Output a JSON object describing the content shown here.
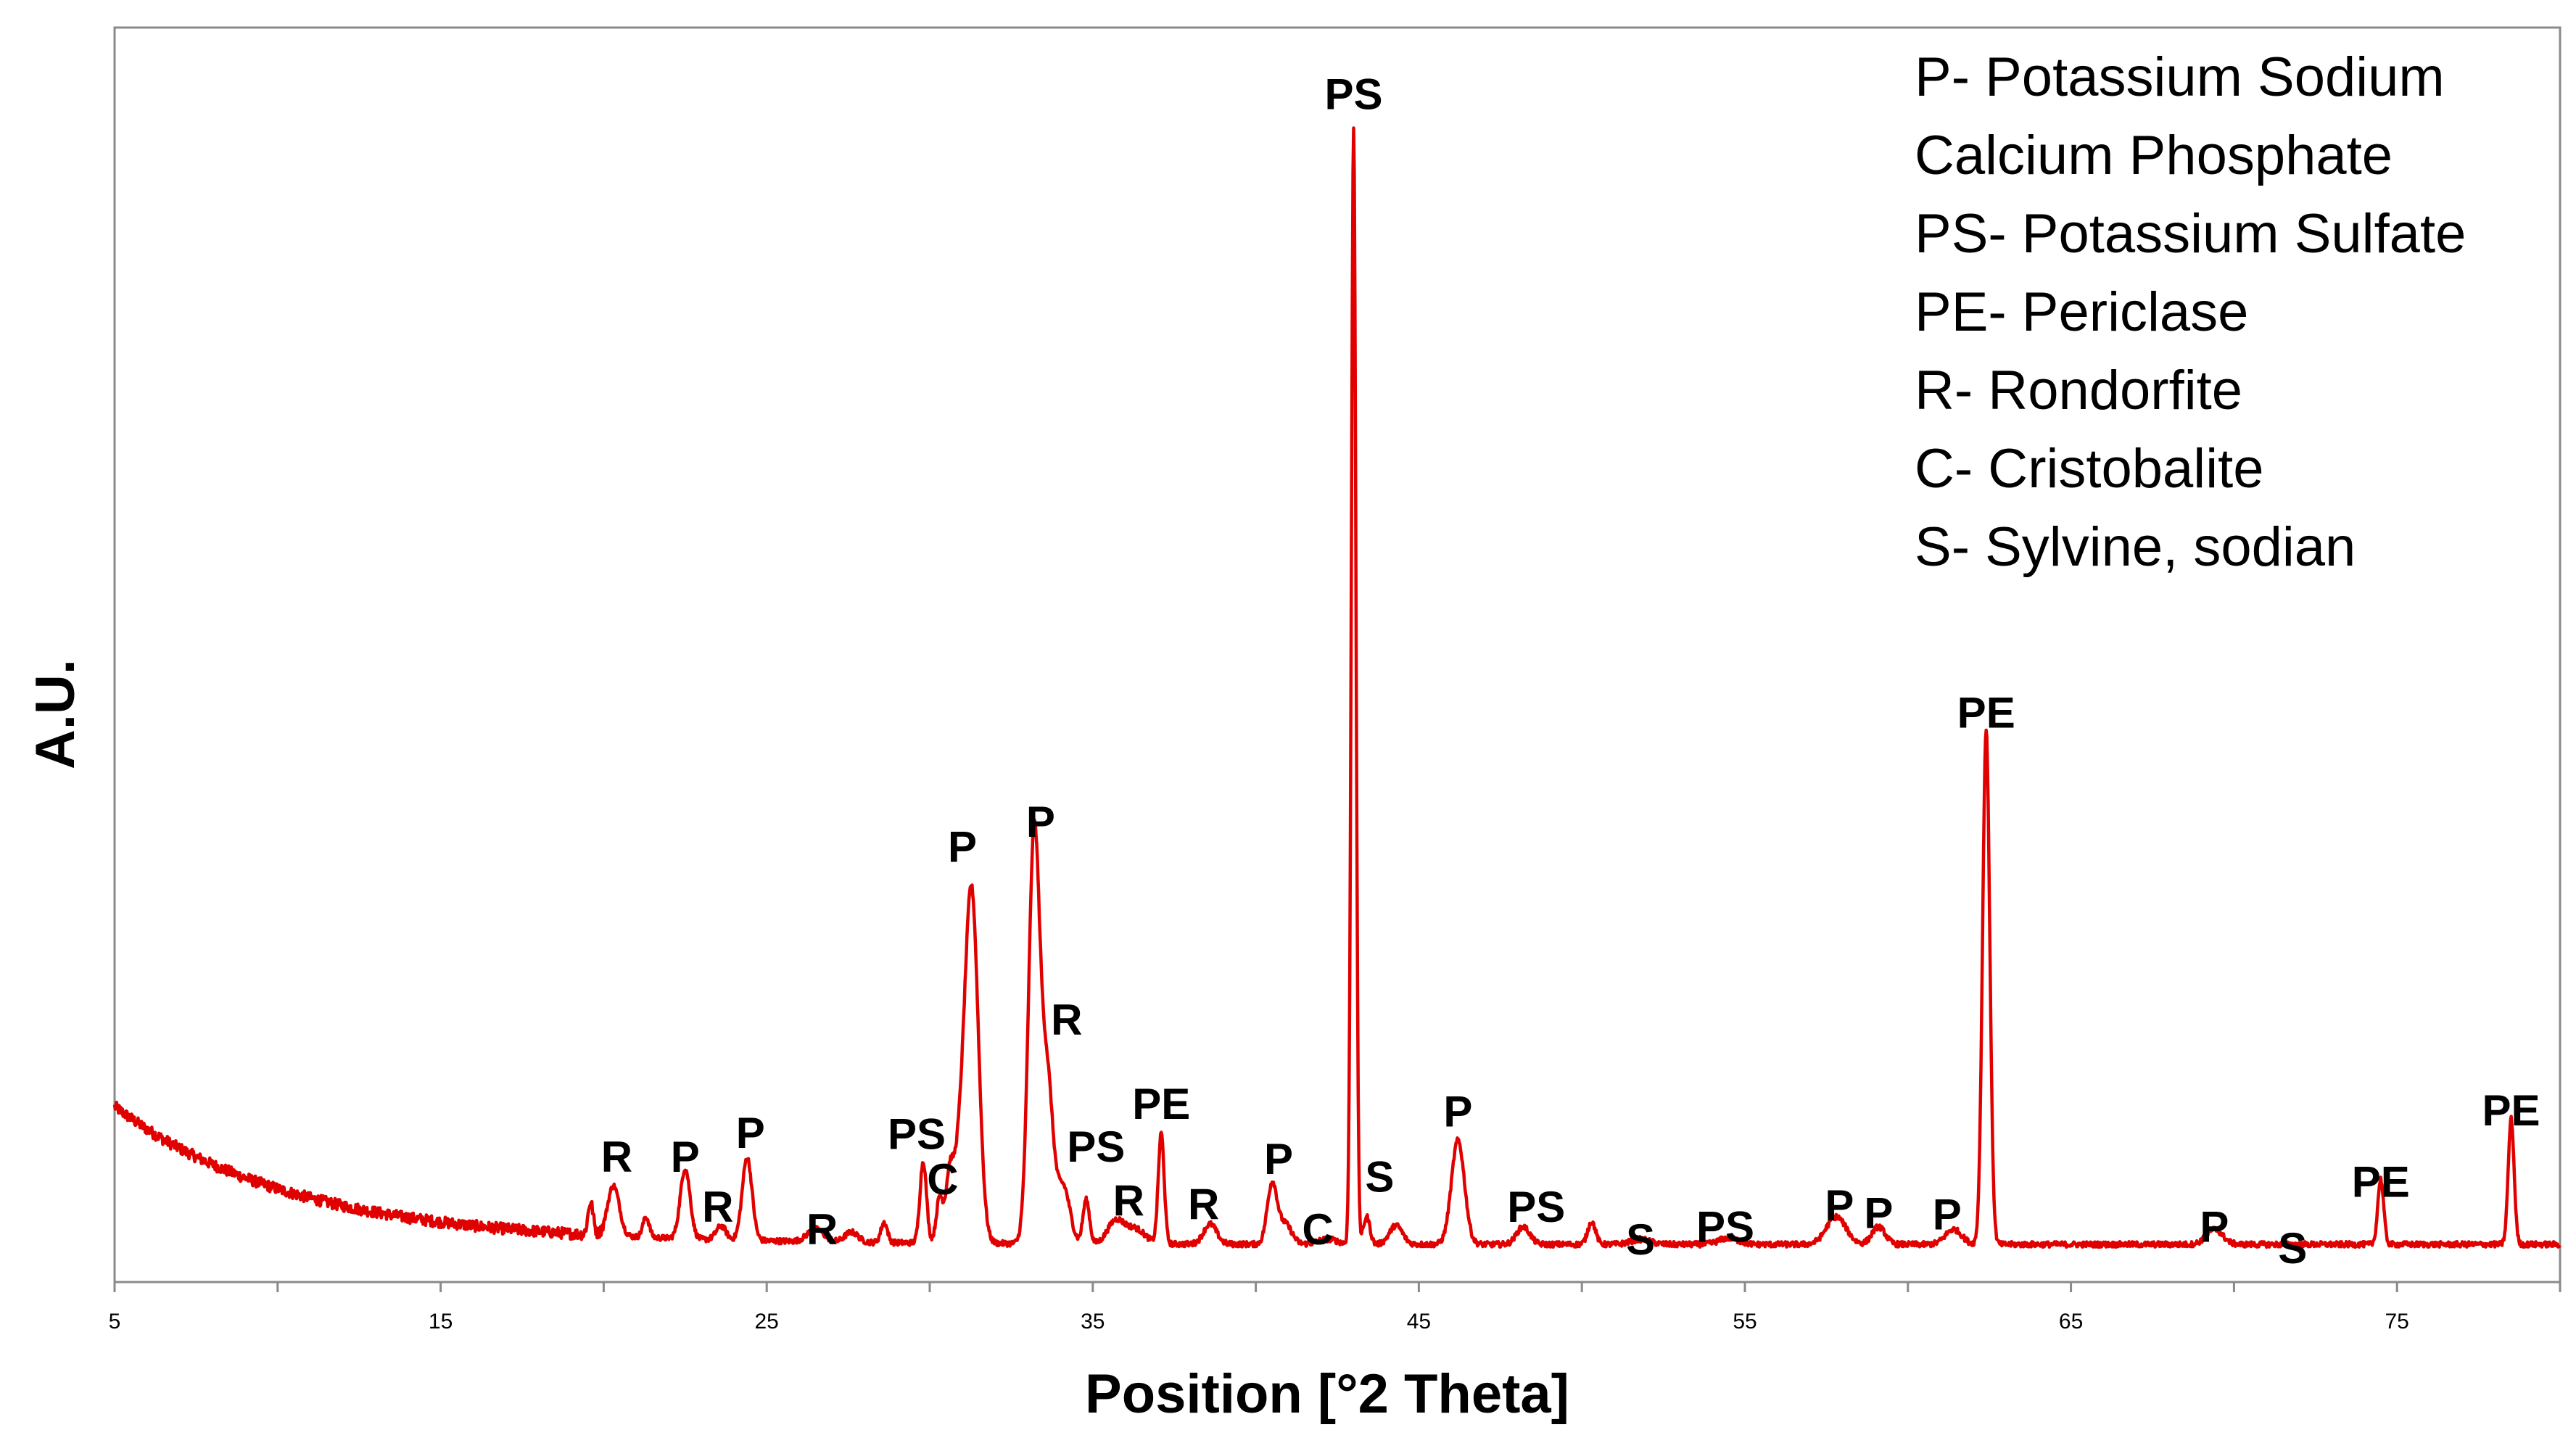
{
  "chart_data": {
    "type": "line",
    "title": "",
    "xlabel": "Position [°2 Theta]",
    "ylabel": "A.U.",
    "xlim": [
      5,
      80
    ],
    "ylim": [
      0,
      100
    ],
    "x_ticks": [
      5,
      15,
      25,
      35,
      45,
      55,
      65,
      75
    ],
    "grid": false,
    "legend_position": "top-right",
    "series_color": "#e00000",
    "baseline": {
      "start": 14,
      "decay": 5.5,
      "floor": 3
    },
    "peaks": [
      {
        "x": 19.6,
        "h": 2.6,
        "w": 0.08
      },
      {
        "x": 20.3,
        "h": 4.0,
        "w": 0.18
      },
      {
        "x": 21.3,
        "h": 1.6,
        "w": 0.1
      },
      {
        "x": 22.5,
        "h": 5.6,
        "w": 0.15
      },
      {
        "x": 23.6,
        "h": 1.1,
        "w": 0.15
      },
      {
        "x": 24.4,
        "h": 6.6,
        "w": 0.15
      },
      {
        "x": 26.5,
        "h": 1.0,
        "w": 0.25
      },
      {
        "x": 27.6,
        "h": 0.8,
        "w": 0.2
      },
      {
        "x": 28.6,
        "h": 1.6,
        "w": 0.1
      },
      {
        "x": 29.8,
        "h": 6.5,
        "w": 0.1
      },
      {
        "x": 30.3,
        "h": 3.2,
        "w": 0.1
      },
      {
        "x": 30.6,
        "h": 3.0,
        "w": 0.1
      },
      {
        "x": 31.0,
        "h": 8.0,
        "w": 0.3
      },
      {
        "x": 31.3,
        "h": 23.5,
        "w": 0.2
      },
      {
        "x": 33.2,
        "h": 32.5,
        "w": 0.17
      },
      {
        "x": 33.6,
        "h": 13.0,
        "w": 0.18
      },
      {
        "x": 34.1,
        "h": 4.5,
        "w": 0.2
      },
      {
        "x": 34.8,
        "h": 3.5,
        "w": 0.1
      },
      {
        "x": 35.7,
        "h": 1.8,
        "w": 0.25
      },
      {
        "x": 36.3,
        "h": 1.2,
        "w": 0.3
      },
      {
        "x": 37.1,
        "h": 8.8,
        "w": 0.09
      },
      {
        "x": 38.6,
        "h": 1.6,
        "w": 0.2
      },
      {
        "x": 40.5,
        "h": 4.8,
        "w": 0.15
      },
      {
        "x": 40.9,
        "h": 1.6,
        "w": 0.2
      },
      {
        "x": 42.2,
        "h": 0.4,
        "w": 0.3
      },
      {
        "x": 43.0,
        "h": 89.0,
        "w": 0.07
      },
      {
        "x": 43.4,
        "h": 2.2,
        "w": 0.1
      },
      {
        "x": 44.3,
        "h": 1.5,
        "w": 0.2
      },
      {
        "x": 46.2,
        "h": 8.3,
        "w": 0.2
      },
      {
        "x": 48.2,
        "h": 1.4,
        "w": 0.2
      },
      {
        "x": 50.3,
        "h": 1.8,
        "w": 0.12
      },
      {
        "x": 51.8,
        "h": 0.4,
        "w": 0.3
      },
      {
        "x": 54.5,
        "h": 0.5,
        "w": 0.3
      },
      {
        "x": 57.8,
        "h": 2.2,
        "w": 0.3
      },
      {
        "x": 59.1,
        "h": 1.4,
        "w": 0.2
      },
      {
        "x": 61.4,
        "h": 1.2,
        "w": 0.25
      },
      {
        "x": 62.4,
        "h": 41.0,
        "w": 0.11
      },
      {
        "x": 69.4,
        "h": 1.2,
        "w": 0.25
      },
      {
        "x": 74.5,
        "h": 5.2,
        "w": 0.09
      },
      {
        "x": 78.5,
        "h": 10.0,
        "w": 0.09
      }
    ],
    "annotations": [
      {
        "text": "PS",
        "x": 43.0,
        "y": 93.5
      },
      {
        "text": "PE",
        "x": 62.4,
        "y": 44.2
      },
      {
        "text": "P",
        "x": 31.0,
        "y": 33.5
      },
      {
        "text": "P",
        "x": 33.4,
        "y": 35.5
      },
      {
        "text": "R",
        "x": 34.2,
        "y": 19.7
      },
      {
        "text": "PS",
        "x": 35.1,
        "y": 9.6
      },
      {
        "text": "R",
        "x": 36.1,
        "y": 5.3
      },
      {
        "text": "PE",
        "x": 37.1,
        "y": 13.0
      },
      {
        "text": "R",
        "x": 38.4,
        "y": 5.0
      },
      {
        "text": "P",
        "x": 40.7,
        "y": 8.6
      },
      {
        "text": "C",
        "x": 41.9,
        "y": 3.0
      },
      {
        "text": "S",
        "x": 43.8,
        "y": 7.2
      },
      {
        "text": "P",
        "x": 46.2,
        "y": 12.4
      },
      {
        "text": "PS",
        "x": 48.6,
        "y": 4.8
      },
      {
        "text": "S",
        "x": 51.8,
        "y": 2.2
      },
      {
        "text": "PS",
        "x": 54.4,
        "y": 3.2
      },
      {
        "text": "P",
        "x": 57.9,
        "y": 4.9
      },
      {
        "text": "P",
        "x": 59.1,
        "y": 4.3
      },
      {
        "text": "P",
        "x": 61.2,
        "y": 4.2
      },
      {
        "text": "P",
        "x": 69.4,
        "y": 3.2
      },
      {
        "text": "S",
        "x": 71.8,
        "y": 1.5
      },
      {
        "text": "PE",
        "x": 74.5,
        "y": 6.8
      },
      {
        "text": "PE",
        "x": 78.5,
        "y": 12.5
      },
      {
        "text": "R",
        "x": 20.4,
        "y": 8.8
      },
      {
        "text": "P",
        "x": 22.5,
        "y": 8.8
      },
      {
        "text": "R",
        "x": 23.5,
        "y": 4.8
      },
      {
        "text": "P",
        "x": 24.5,
        "y": 10.7
      },
      {
        "text": "R",
        "x": 26.7,
        "y": 3.0
      },
      {
        "text": "PS",
        "x": 29.6,
        "y": 10.6
      },
      {
        "text": "C",
        "x": 30.4,
        "y": 7.0
      }
    ],
    "legend": [
      "P- Potassium Sodium",
      "Calcium Phosphate",
      "PS- Potassium Sulfate",
      "PE- Periclase",
      "R- Rondorfite",
      "C- Cristobalite",
      "S- Sylvine, sodian"
    ]
  }
}
